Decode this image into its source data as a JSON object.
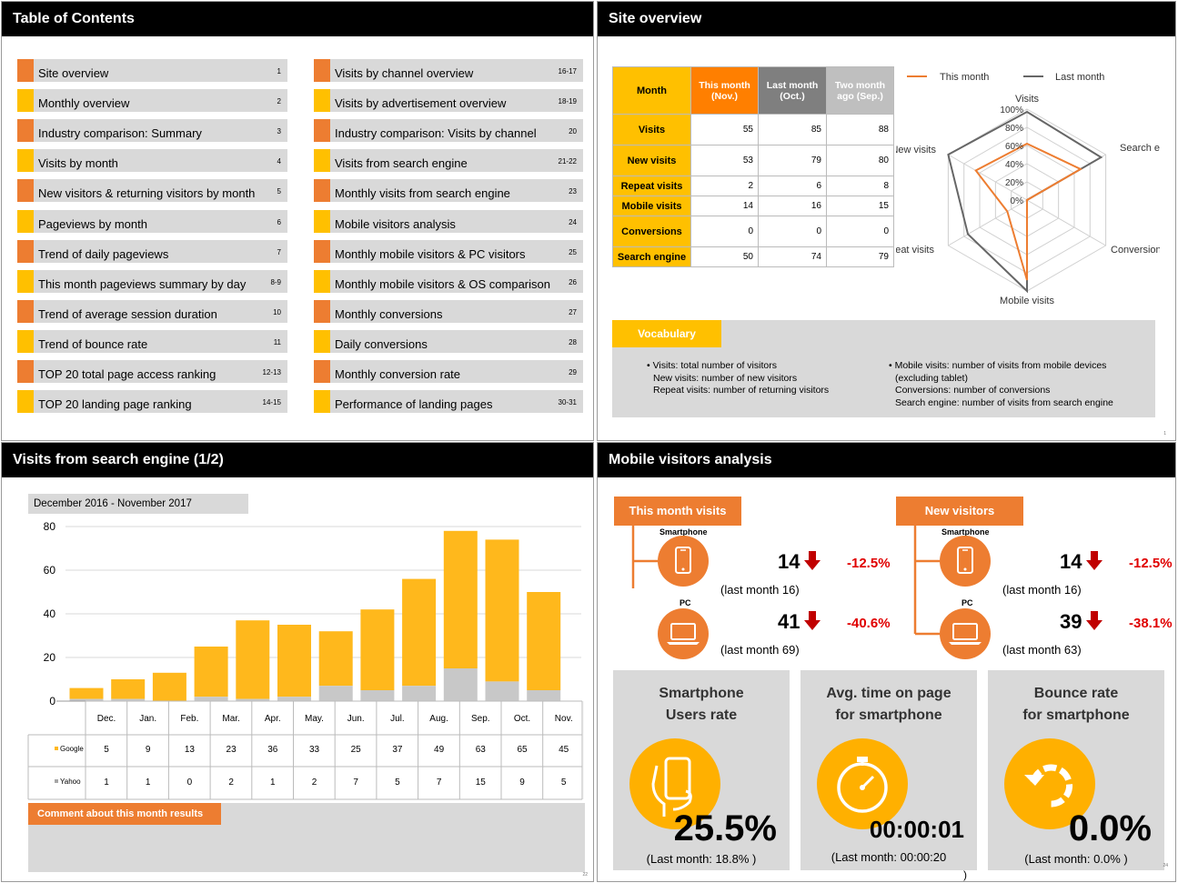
{
  "toc": {
    "title": "Table of Contents",
    "left": [
      {
        "label": "Site overview",
        "page": "1",
        "color": "#ed7d31"
      },
      {
        "label": "Monthly overview",
        "page": "2",
        "color": "#ffc000"
      },
      {
        "label": "Industry comparison: Summary",
        "page": "3",
        "color": "#ed7d31"
      },
      {
        "label": "Visits by month",
        "page": "4",
        "color": "#ffc000"
      },
      {
        "label": "New visitors & returning visitors by month",
        "page": "5",
        "color": "#ed7d31"
      },
      {
        "label": "Pageviews by month",
        "page": "6",
        "color": "#ffc000"
      },
      {
        "label": "Trend of daily pageviews",
        "page": "7",
        "color": "#ed7d31"
      },
      {
        "label": "This month pageviews summary by day",
        "page": "8-9",
        "color": "#ffc000"
      },
      {
        "label": "Trend of average session duration",
        "page": "10",
        "color": "#ed7d31"
      },
      {
        "label": "Trend of bounce rate",
        "page": "11",
        "color": "#ffc000"
      },
      {
        "label": "TOP 20 total page access ranking",
        "page": "12-13",
        "color": "#ed7d31"
      },
      {
        "label": "TOP 20 landing page ranking",
        "page": "14-15",
        "color": "#ffc000"
      }
    ],
    "right": [
      {
        "label": "Visits by channel overview",
        "page": "16-17",
        "color": "#ed7d31"
      },
      {
        "label": "Visits by advertisement overview",
        "page": "18-19",
        "color": "#ffc000"
      },
      {
        "label": "Industry comparison: Visits by channel",
        "page": "20",
        "color": "#ed7d31"
      },
      {
        "label": "Visits from search engine",
        "page": "21-22",
        "color": "#ffc000"
      },
      {
        "label": "Monthly visits from search engine",
        "page": "23",
        "color": "#ed7d31"
      },
      {
        "label": "Mobile visitors analysis",
        "page": "24",
        "color": "#ffc000"
      },
      {
        "label": "Monthly mobile visitors & PC visitors",
        "page": "25",
        "color": "#ed7d31"
      },
      {
        "label": "Monthly mobile visitors & OS comparison",
        "page": "26",
        "color": "#ffc000"
      },
      {
        "label": "Monthly conversions",
        "page": "27",
        "color": "#ed7d31"
      },
      {
        "label": "Daily conversions",
        "page": "28",
        "color": "#ffc000"
      },
      {
        "label": "Monthly conversion rate",
        "page": "29",
        "color": "#ed7d31"
      },
      {
        "label": "Performance of landing pages",
        "page": "30-31",
        "color": "#ffc000"
      }
    ]
  },
  "overview": {
    "title": "Site overview",
    "page": "1",
    "table": {
      "col_month": "Month",
      "col_this": "This month (Nov.)",
      "col_last": "Last month (Oct.)",
      "col_two": "Two month ago (Sep.)",
      "rows": [
        {
          "label": "Visits",
          "this": "55",
          "last": "85",
          "two": "88"
        },
        {
          "label": "New visits",
          "this": "53",
          "last": "79",
          "two": "80"
        },
        {
          "label": "Repeat visits",
          "this": "2",
          "last": "6",
          "two": "8"
        },
        {
          "label": "Mobile visits",
          "this": "14",
          "last": "16",
          "two": "15"
        },
        {
          "label": "Conversions",
          "this": "0",
          "last": "0",
          "two": "0"
        },
        {
          "label": "Search engine",
          "this": "50",
          "last": "74",
          "two": "79"
        }
      ]
    },
    "radar": {
      "legend_this": "This month",
      "legend_last": "Last month",
      "axes": [
        "Visits",
        "Search engine",
        "Conversions",
        "Mobile visits",
        "Repeat visits",
        "New visits"
      ],
      "ticks": [
        "0%",
        "20%",
        "40%",
        "60%",
        "80%",
        "100%"
      ],
      "this_month": [
        62,
        68,
        0,
        88,
        25,
        65
      ],
      "last_month": [
        97,
        94,
        0,
        100,
        75,
        100
      ],
      "color_this": "#ed7d31",
      "color_last": "#666666"
    },
    "vocab": {
      "title": "Vocabulary",
      "left": [
        "• Visits: total number of visitors",
        "New visits: number of new visitors",
        "Repeat visits: number of returning visitors"
      ],
      "right": [
        "• Mobile visits: number of visits from mobile devices",
        "(excluding tablet)",
        "Conversions: number of conversions",
        "Search engine: number of visits from search engine"
      ]
    }
  },
  "search": {
    "title": "Visits from search engine (1/2)",
    "period": "December 2016 - November 2017",
    "comment_title": "Comment about this month results",
    "page": "22",
    "chart_data": {
      "type": "bar",
      "stacked": true,
      "categories": [
        "Dec.",
        "Jan.",
        "Feb.",
        "Mar.",
        "Apr.",
        "May.",
        "Jun.",
        "Jul.",
        "Aug.",
        "Sep.",
        "Oct.",
        "Nov."
      ],
      "series": [
        {
          "name": "Google",
          "values": [
            5,
            9,
            13,
            23,
            36,
            33,
            25,
            37,
            49,
            63,
            65,
            45
          ],
          "color": "#ffb81c"
        },
        {
          "name": "Yahoo",
          "values": [
            1,
            1,
            0,
            2,
            1,
            2,
            7,
            5,
            7,
            15,
            9,
            5
          ],
          "color": "#c8c8c8"
        }
      ],
      "yticks": [
        "0",
        "20",
        "40",
        "60",
        "80"
      ],
      "ylim": [
        0,
        80
      ],
      "grid": true
    }
  },
  "mobile": {
    "title": "Mobile visitors analysis",
    "page": "24",
    "this_month": {
      "title": "This month visits",
      "smart_label": "Smartphone",
      "smart_value": "14",
      "smart_pct": "-12.5%",
      "smart_last": "(last month 16)",
      "pc_label": "PC",
      "pc_value": "41",
      "pc_pct": "-40.6%",
      "pc_last": "(last month 69)"
    },
    "new_visitors": {
      "title": "New visitors",
      "smart_label": "Smartphone",
      "smart_value": "14",
      "smart_pct": "-12.5%",
      "smart_last": "(last month 16)",
      "pc_label": "PC",
      "pc_value": "39",
      "pc_pct": "-38.1%",
      "pc_last": "(last month 63)"
    },
    "kpis": [
      {
        "title1": "Smartphone",
        "title2": "Users rate",
        "value": "25.5%",
        "sub": "(Last month:  18.8% )",
        "icon": "hand-phone-icon"
      },
      {
        "title1": "Avg. time on page",
        "title2": "for smartphone",
        "value": "00:00:01",
        "sub": "(Last month:  00:00:20",
        "sub2": ")",
        "icon": "stopwatch-icon"
      },
      {
        "title1": "Bounce rate",
        "title2": "for smartphone",
        "value": "0.0%",
        "sub": "(Last month:  0.0% )",
        "icon": "refresh-icon"
      }
    ]
  }
}
